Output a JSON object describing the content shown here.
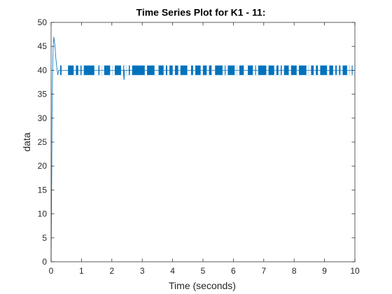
{
  "chart_data": {
    "type": "line",
    "title": "Time Series Plot for K1 - 11:",
    "xlabel": "Time (seconds)",
    "ylabel": "data",
    "xlim": [
      0,
      10
    ],
    "ylim": [
      0,
      50
    ],
    "xticks": [
      0,
      1,
      2,
      3,
      4,
      5,
      6,
      7,
      8,
      9,
      10
    ],
    "yticks": [
      0,
      5,
      10,
      15,
      20,
      25,
      30,
      35,
      40,
      45,
      50
    ],
    "grid": false,
    "box": true,
    "series": [
      {
        "color": "#0072BD",
        "description_points": {
          "x": [
            0.0,
            0.02,
            0.03,
            0.05,
            0.07,
            0.09,
            0.11,
            0.13,
            0.15,
            0.18,
            0.2,
            0.22,
            0.25,
            0.3,
            2.38,
            2.4,
            2.42,
            10.0
          ],
          "y": [
            0,
            17,
            30,
            40,
            45,
            47,
            46,
            45,
            43,
            41,
            40,
            39,
            40,
            40,
            40,
            38,
            40,
            40
          ]
        },
        "steady_state": {
          "start": 0.3,
          "end": 10.0,
          "levels": [
            39,
            41
          ],
          "baseline": 40
        }
      }
    ]
  }
}
